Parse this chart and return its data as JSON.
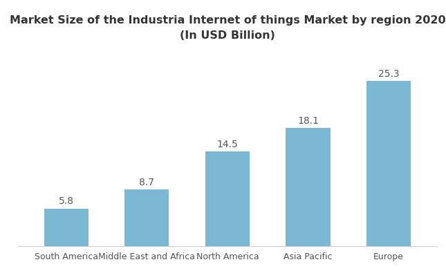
{
  "title_line1": "Market Size of the Industria Internet of things Market by region 2020",
  "title_line2": "(In USD Billion)",
  "categories": [
    "South America",
    "Middle East and Africa",
    "North America",
    "Asia Pacific",
    "Europe"
  ],
  "values": [
    5.8,
    8.7,
    14.5,
    18.1,
    25.3
  ],
  "bar_color": "#7ab8d4",
  "bar_width": 0.55,
  "ylim": [
    0,
    30
  ],
  "title_fontsize": 11.5,
  "subtitle_fontsize": 11,
  "label_fontsize": 10,
  "tick_fontsize": 9,
  "background_color": "#ffffff",
  "label_color": "#555555",
  "spine_color": "#cccccc"
}
